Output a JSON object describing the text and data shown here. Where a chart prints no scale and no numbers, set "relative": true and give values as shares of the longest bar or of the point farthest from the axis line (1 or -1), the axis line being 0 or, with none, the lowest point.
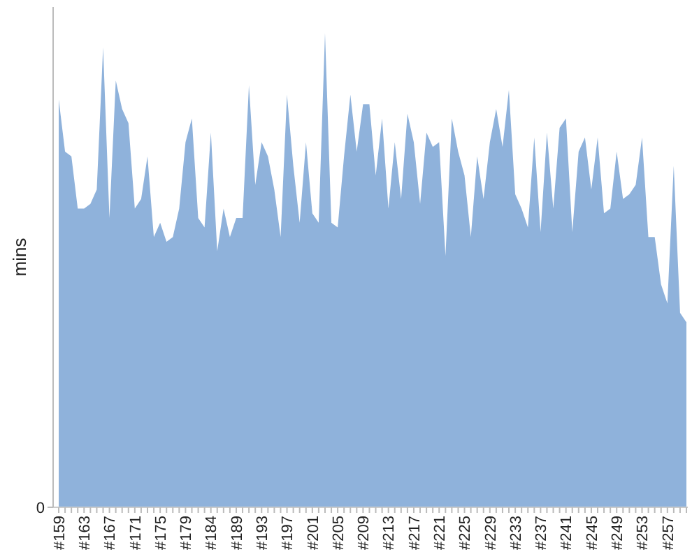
{
  "chart_data": {
    "type": "area",
    "ylabel": "mins",
    "relative": true,
    "annotations": [
      "0"
    ],
    "color": "#8fb2db",
    "categories": [
      "#159",
      null,
      null,
      null,
      "#163",
      null,
      null,
      null,
      "#167",
      null,
      null,
      null,
      "#171",
      null,
      null,
      null,
      "#175",
      null,
      null,
      null,
      "#179",
      null,
      null,
      null,
      "#184",
      null,
      null,
      null,
      "#189",
      null,
      null,
      null,
      "#193",
      null,
      null,
      null,
      "#197",
      null,
      null,
      null,
      "#201",
      null,
      null,
      null,
      "#205",
      null,
      null,
      null,
      "#209",
      null,
      null,
      null,
      "#213",
      null,
      null,
      null,
      "#217",
      null,
      null,
      null,
      "#221",
      null,
      null,
      null,
      "#225",
      null,
      null,
      null,
      "#229",
      null,
      null,
      null,
      "#233",
      null,
      null,
      null,
      "#237",
      null,
      null,
      null,
      "#241",
      null,
      null,
      null,
      "#245",
      null,
      null,
      null,
      "#249",
      null,
      null,
      null,
      "#253",
      null,
      null,
      null,
      "#257",
      null,
      null,
      null
    ],
    "values": [
      0.86,
      0.75,
      0.74,
      0.63,
      0.63,
      0.64,
      0.67,
      0.97,
      0.61,
      0.9,
      0.84,
      0.81,
      0.63,
      0.65,
      0.74,
      0.57,
      0.6,
      0.56,
      0.57,
      0.63,
      0.77,
      0.82,
      0.61,
      0.59,
      0.79,
      0.54,
      0.63,
      0.57,
      0.61,
      0.61,
      0.89,
      0.68,
      0.77,
      0.74,
      0.67,
      0.57,
      0.87,
      0.72,
      0.6,
      0.77,
      0.62,
      0.6,
      1,
      0.6,
      0.59,
      0.74,
      0.87,
      0.75,
      0.85,
      0.85,
      0.7,
      0.82,
      0.63,
      0.77,
      0.65,
      0.83,
      0.77,
      0.64,
      0.79,
      0.76,
      0.77,
      0.53,
      0.82,
      0.75,
      0.7,
      0.57,
      0.74,
      0.65,
      0.77,
      0.84,
      0.76,
      0.88,
      0.66,
      0.63,
      0.59,
      0.78,
      0.58,
      0.79,
      0.63,
      0.8,
      0.82,
      0.58,
      0.75,
      0.78,
      0.67,
      0.78,
      0.62,
      0.63,
      0.75,
      0.65,
      0.66,
      0.68,
      0.78,
      0.57,
      0.57,
      0.47,
      0.43,
      0.72,
      0.41,
      0.39
    ]
  }
}
